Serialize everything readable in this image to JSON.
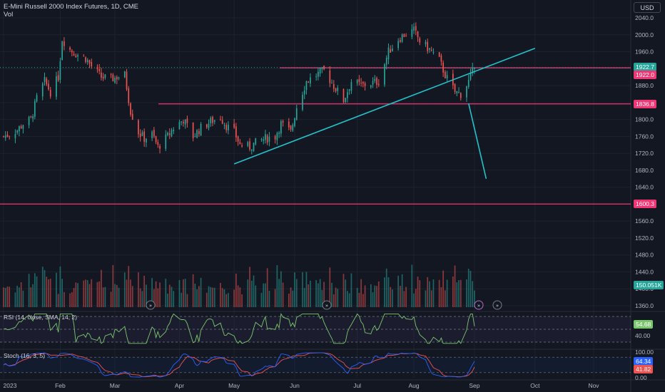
{
  "header": {
    "symbol_title": "E-Mini Russell 2000 Index Futures, 1D, CME",
    "volume_label": "Vol",
    "currency": "USD"
  },
  "price_tags": {
    "last_price": "1922.7",
    "level_upper": "1922.0",
    "level_middle": "1836.8",
    "level_lower": "1600.3",
    "volume_value": "150.051K"
  },
  "indicators": {
    "rsi": {
      "label": "RSI (14, close, SMA, 14, 2)",
      "value": "54.68",
      "levels": [
        "60.00",
        "40.00"
      ]
    },
    "stoch": {
      "label": "Stoch (16, 3, 5)",
      "k_value": "64.34",
      "d_value": "41.82",
      "levels": [
        "100.00",
        "50.00",
        "0.00"
      ]
    }
  },
  "colors": {
    "background": "#131722",
    "up": "#26a69a",
    "down": "#ef5350",
    "level_line": "#f23674",
    "trendline": "#22c2cc",
    "rsi_line": "#7bc86c",
    "stoch_k": "#2962ff",
    "stoch_d": "#ef5350"
  },
  "chart_data": {
    "type": "candlestick",
    "title": "E-Mini Russell 2000 Index Futures, 1D, CME",
    "price_axis_ticks": [
      2040,
      2000,
      1960,
      1920,
      1880,
      1840,
      1800,
      1760,
      1720,
      1680,
      1640,
      1600,
      1560,
      1520,
      1480,
      1440,
      1400,
      1360
    ],
    "price_axis_tick_labels": [
      "2040.0",
      "2000.0",
      "1960.0",
      "1920.0",
      "1880.0",
      "1840.0",
      "1800.0",
      "1760.0",
      "1720.0",
      "1680.0",
      "1640.0",
      "1600.0",
      "1560.0",
      "1520.0",
      "1480.0",
      "1440.0",
      "1400.0",
      "1360.0"
    ],
    "price_range": [
      1355,
      2050
    ],
    "time_axis_labels": [
      "2023",
      "Feb",
      "Mar",
      "Apr",
      "May",
      "Jun",
      "Jul",
      "Aug",
      "Sep",
      "Oct",
      "Nov"
    ],
    "time_axis_dates": [
      "2023-01-03",
      "2023-02-01",
      "2023-03-01",
      "2023-04-03",
      "2023-05-01",
      "2023-06-01",
      "2023-07-03",
      "2023-08-01",
      "2023-09-01",
      "2023-10-02",
      "2023-11-01"
    ],
    "close_path": [
      [
        "2023-01-03",
        1760
      ],
      [
        "2023-01-06",
        1765
      ],
      [
        "2023-01-10",
        1775
      ],
      [
        "2023-01-13",
        1790
      ],
      [
        "2023-01-17",
        1800
      ],
      [
        "2023-01-20",
        1850
      ],
      [
        "2023-01-24",
        1890
      ],
      [
        "2023-01-27",
        1865
      ],
      [
        "2023-01-31",
        1900
      ],
      [
        "2023-02-02",
        1990
      ],
      [
        "2023-02-06",
        1965
      ],
      [
        "2023-02-09",
        1955
      ],
      [
        "2023-02-14",
        1945
      ],
      [
        "2023-02-17",
        1925
      ],
      [
        "2023-02-22",
        1900
      ],
      [
        "2023-02-27",
        1895
      ],
      [
        "2023-03-02",
        1900
      ],
      [
        "2023-03-06",
        1905
      ],
      [
        "2023-03-09",
        1820
      ],
      [
        "2023-03-13",
        1770
      ],
      [
        "2023-03-16",
        1755
      ],
      [
        "2023-03-20",
        1765
      ],
      [
        "2023-03-23",
        1735
      ],
      [
        "2023-03-28",
        1760
      ],
      [
        "2023-03-31",
        1780
      ],
      [
        "2023-04-05",
        1800
      ],
      [
        "2023-04-10",
        1760
      ],
      [
        "2023-04-14",
        1780
      ],
      [
        "2023-04-19",
        1795
      ],
      [
        "2023-04-24",
        1805
      ],
      [
        "2023-04-27",
        1785
      ],
      [
        "2023-05-01",
        1770
      ],
      [
        "2023-05-04",
        1740
      ],
      [
        "2023-05-09",
        1735
      ],
      [
        "2023-05-12",
        1745
      ],
      [
        "2023-05-17",
        1755
      ],
      [
        "2023-05-22",
        1760
      ],
      [
        "2023-05-25",
        1790
      ],
      [
        "2023-05-30",
        1770
      ],
      [
        "2023-06-02",
        1830
      ],
      [
        "2023-06-07",
        1890
      ],
      [
        "2023-06-12",
        1905
      ],
      [
        "2023-06-16",
        1915
      ],
      [
        "2023-06-21",
        1880
      ],
      [
        "2023-06-26",
        1845
      ],
      [
        "2023-06-30",
        1890
      ],
      [
        "2023-07-05",
        1880
      ],
      [
        "2023-07-10",
        1885
      ],
      [
        "2023-07-14",
        1890
      ],
      [
        "2023-07-19",
        1960
      ],
      [
        "2023-07-24",
        1990
      ],
      [
        "2023-07-27",
        2000
      ],
      [
        "2023-08-01",
        2010
      ],
      [
        "2023-08-04",
        1985
      ],
      [
        "2023-08-09",
        1965
      ],
      [
        "2023-08-14",
        1940
      ],
      [
        "2023-08-17",
        1905
      ],
      [
        "2023-08-22",
        1865
      ],
      [
        "2023-08-25",
        1860
      ],
      [
        "2023-08-29",
        1890
      ],
      [
        "2023-09-01",
        1922.7
      ]
    ],
    "horizontal_levels": [
      1922.0,
      1836.8,
      1600.3
    ],
    "trendlines": [
      {
        "from": [
          "2023-05-01",
          1695
        ],
        "to": [
          "2023-10-02",
          1968
        ]
      },
      {
        "from": [
          "2023-08-29",
          1838
        ],
        "to": [
          "2023-09-07",
          1660
        ]
      }
    ],
    "volume_last": 150051,
    "rsi_last": 54.68,
    "rsi_levels": [
      60,
      40
    ],
    "stoch_k_last": 64.34,
    "stoch_d_last": 41.82,
    "stoch_levels": [
      100,
      50,
      0
    ]
  }
}
